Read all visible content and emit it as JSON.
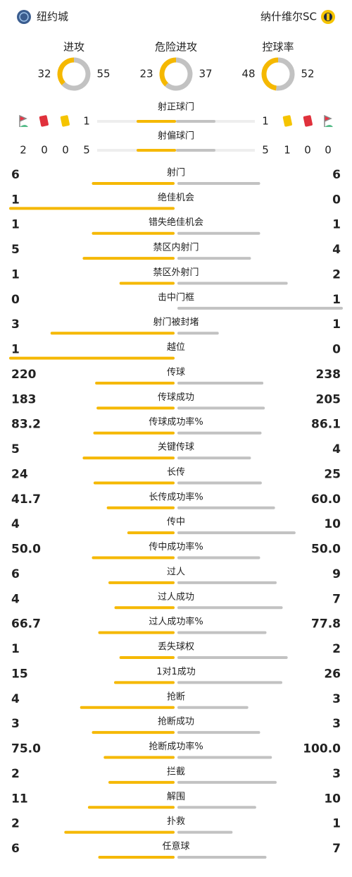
{
  "header": {
    "home_team": "纽约城",
    "away_team": "纳什维尔SC"
  },
  "colors": {
    "home": "#f5b800",
    "away": "#c2c2c2"
  },
  "donuts": [
    {
      "label": "进攻",
      "home": 32,
      "away": 55
    },
    {
      "label": "危险进攻",
      "home": 23,
      "away": 37
    },
    {
      "label": "控球率",
      "home": 48,
      "away": 52
    }
  ],
  "cards": {
    "home": {
      "corners": 2,
      "red": 0,
      "yellow": 0
    },
    "away": {
      "yellow": 1,
      "red": 0,
      "corners": 0
    }
  },
  "shots": [
    {
      "label": "射正球门",
      "home": 1,
      "away": 1
    },
    {
      "label": "射偏球门",
      "home": 5,
      "away": 5
    }
  ],
  "stats": [
    {
      "label": "射门",
      "home": 6,
      "away": 6
    },
    {
      "label": "绝佳机会",
      "home": 1,
      "away": 0
    },
    {
      "label": "错失绝佳机会",
      "home": 1,
      "away": 1
    },
    {
      "label": "禁区内射门",
      "home": 5,
      "away": 4
    },
    {
      "label": "禁区外射门",
      "home": 1,
      "away": 2
    },
    {
      "label": "击中门框",
      "home": 0,
      "away": 1
    },
    {
      "label": "射门被封堵",
      "home": 3,
      "away": 1
    },
    {
      "label": "越位",
      "home": 1,
      "away": 0
    },
    {
      "label": "传球",
      "home": 220,
      "away": 238
    },
    {
      "label": "传球成功",
      "home": 183,
      "away": 205
    },
    {
      "label": "传球成功率%",
      "home": 83.2,
      "away": 86.1
    },
    {
      "label": "关键传球",
      "home": 5,
      "away": 4
    },
    {
      "label": "长传",
      "home": 24,
      "away": 25
    },
    {
      "label": "长传成功率%",
      "home": 41.7,
      "away": 60,
      "away_label": "60.0"
    },
    {
      "label": "传中",
      "home": 4,
      "away": 10
    },
    {
      "label": "传中成功率%",
      "home": 50,
      "home_label": "50.0",
      "away": 50,
      "away_label": "50.0"
    },
    {
      "label": "过人",
      "home": 6,
      "away": 9
    },
    {
      "label": "过人成功",
      "home": 4,
      "away": 7
    },
    {
      "label": "过人成功率%",
      "home": 66.7,
      "away": 77.8
    },
    {
      "label": "丢失球权",
      "home": 1,
      "away": 2
    },
    {
      "label": "1对1成功",
      "home": 15,
      "away": 26
    },
    {
      "label": "抢断",
      "home": 4,
      "away": 3
    },
    {
      "label": "抢断成功",
      "home": 3,
      "away": 3
    },
    {
      "label": "抢断成功率%",
      "home": 75,
      "home_label": "75.0",
      "away": 100,
      "away_label": "100.0"
    },
    {
      "label": "拦截",
      "home": 2,
      "away": 3
    },
    {
      "label": "解围",
      "home": 11,
      "away": 10
    },
    {
      "label": "扑救",
      "home": 2,
      "away": 1
    },
    {
      "label": "任意球",
      "home": 6,
      "away": 7
    }
  ]
}
